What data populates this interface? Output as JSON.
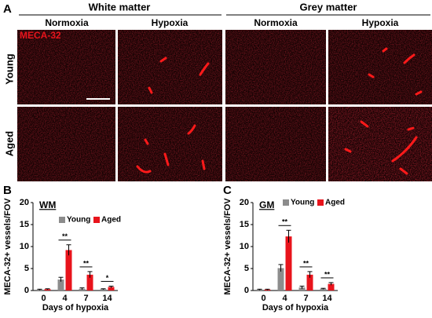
{
  "panel_a": {
    "label": "A",
    "groups": [
      "White matter",
      "Grey matter"
    ],
    "conditions": [
      "Normoxia",
      "Hypoxia",
      "Normoxia",
      "Hypoxia"
    ],
    "stain": "MECA-32",
    "rows": [
      "Young",
      "Aged"
    ]
  },
  "chart_data": [
    {
      "type": "bar",
      "panel_label": "B",
      "annotation": "WM",
      "y_label": "MECA-32+ vessels/FOV",
      "x_label": "Days of hypoxia",
      "categories": [
        "0",
        "4",
        "7",
        "14"
      ],
      "series": [
        {
          "name": "Young",
          "color": "#8c8c8c",
          "values": [
            0.2,
            2.5,
            0.4,
            0.3
          ],
          "errors": [
            0.1,
            0.5,
            0.2,
            0.1
          ]
        },
        {
          "name": "Aged",
          "color": "#e8141c",
          "values": [
            0.3,
            9.2,
            3.6,
            0.8
          ],
          "errors": [
            0.1,
            1.2,
            0.7,
            0.2
          ]
        }
      ],
      "significance": [
        null,
        "**",
        "**",
        "*"
      ],
      "ylim": [
        0,
        20
      ],
      "yticks": [
        0,
        5,
        10,
        15,
        20
      ]
    },
    {
      "type": "bar",
      "panel_label": "C",
      "annotation": "GM",
      "y_label": "MECA-32+ vessels/FOV",
      "x_label": "Days of hypoxia",
      "categories": [
        "0",
        "4",
        "7",
        "14"
      ],
      "series": [
        {
          "name": "Young",
          "color": "#8c8c8c",
          "values": [
            0.2,
            5.1,
            0.7,
            0.4
          ],
          "errors": [
            0.1,
            0.8,
            0.3,
            0.1
          ]
        },
        {
          "name": "Aged",
          "color": "#e8141c",
          "values": [
            0.2,
            12.3,
            3.6,
            1.5
          ],
          "errors": [
            0.1,
            1.4,
            0.7,
            0.3
          ]
        }
      ],
      "significance": [
        null,
        "**",
        "**",
        "**"
      ],
      "ylim": [
        0,
        20
      ],
      "yticks": [
        0,
        5,
        10,
        15,
        20
      ]
    }
  ]
}
